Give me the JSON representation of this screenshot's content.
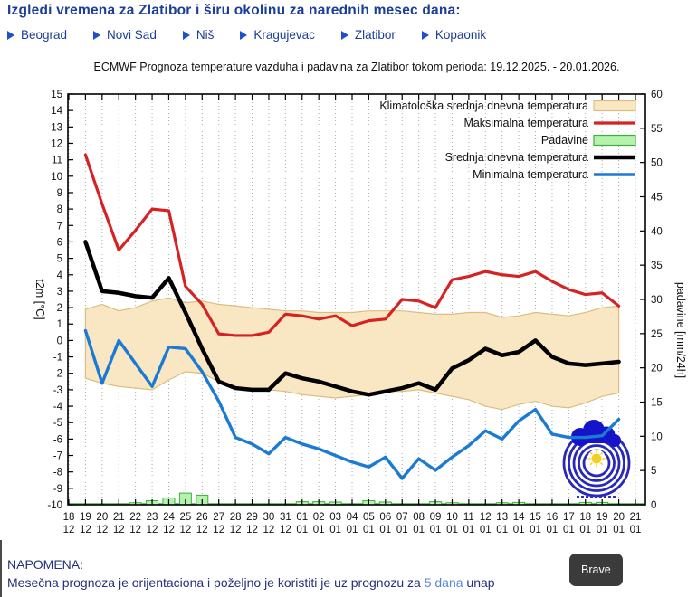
{
  "header": {
    "title": "Izgledi vremena za Zlatibor i širu okolinu za narednih mesec dana:"
  },
  "nav": {
    "items": [
      {
        "label": "Beograd"
      },
      {
        "label": "Novi Sad"
      },
      {
        "label": "Niš"
      },
      {
        "label": "Kragujevac"
      },
      {
        "label": "Zlatibor"
      },
      {
        "label": "Kopaonik"
      }
    ]
  },
  "chart_data": {
    "type": "line",
    "title": "ECMWF Prognoza temperature vazduha i padavina za Zlatibor tokom perioda: 19.12.2025. - 20.01.2026.",
    "grid": "vertical-dotted",
    "legend_position": "top-right",
    "y_left": {
      "label": "t2m [°C]",
      "min": -10,
      "max": 15,
      "step": 1
    },
    "y_right": {
      "label": "padavine [mm/24h]",
      "min": 0,
      "max": 60,
      "step": 5
    },
    "x_ticks": {
      "days": [
        "18",
        "19",
        "20",
        "21",
        "22",
        "23",
        "24",
        "25",
        "26",
        "27",
        "28",
        "29",
        "30",
        "31",
        "01",
        "02",
        "03",
        "04",
        "05",
        "06",
        "07",
        "08",
        "09",
        "10",
        "11",
        "12",
        "13",
        "14",
        "15",
        "16",
        "17",
        "18",
        "19",
        "20",
        "21"
      ],
      "months": [
        "12",
        "12",
        "12",
        "12",
        "12",
        "12",
        "12",
        "12",
        "12",
        "12",
        "12",
        "12",
        "12",
        "12",
        "01",
        "01",
        "01",
        "01",
        "01",
        "01",
        "01",
        "01",
        "01",
        "01",
        "01",
        "01",
        "01",
        "01",
        "01",
        "01",
        "01",
        "01",
        "01",
        "01",
        "01"
      ]
    },
    "data_start_tick": 1,
    "data_dates": [
      "19.12",
      "20.12",
      "21.12",
      "22.12",
      "23.12",
      "24.12",
      "25.12",
      "26.12",
      "27.12",
      "28.12",
      "29.12",
      "30.12",
      "31.12",
      "01.01",
      "02.01",
      "03.01",
      "04.01",
      "05.01",
      "06.01",
      "07.01",
      "08.01",
      "09.01",
      "10.01",
      "11.01",
      "12.01",
      "13.01",
      "14.01",
      "15.01",
      "16.01",
      "17.01",
      "18.01",
      "19.01",
      "20.01"
    ],
    "series": [
      {
        "name": "Klimatološka srednja dnevna temperatura",
        "type": "band",
        "upper": [
          1.9,
          2.2,
          1.8,
          2.0,
          2.4,
          2.6,
          2.3,
          2.4,
          2.2,
          2.1,
          2.0,
          1.9,
          1.8,
          1.8,
          1.7,
          1.7,
          1.7,
          1.8,
          1.8,
          1.8,
          1.7,
          1.6,
          1.6,
          1.7,
          1.7,
          1.4,
          1.5,
          1.7,
          1.6,
          1.5,
          1.7,
          2.0,
          2.1
        ],
        "lower": [
          -2.3,
          -2.6,
          -2.8,
          -2.9,
          -3.0,
          -2.4,
          -1.9,
          -2.0,
          -2.5,
          -2.8,
          -3.0,
          -3.0,
          -3.1,
          -3.3,
          -3.4,
          -3.5,
          -3.4,
          -3.3,
          -3.1,
          -3.1,
          -3.0,
          -3.2,
          -3.4,
          -3.6,
          -4.0,
          -4.2,
          -3.9,
          -3.7,
          -4.0,
          -4.1,
          -3.8,
          -3.4,
          -3.2
        ]
      },
      {
        "name": "Maksimalna temperatura",
        "type": "line",
        "color": "#d62222",
        "width": 3.2,
        "values": [
          11.3,
          8.3,
          5.5,
          6.7,
          8.0,
          7.9,
          3.3,
          2.2,
          0.4,
          0.3,
          0.3,
          0.5,
          1.6,
          1.5,
          1.3,
          1.5,
          0.9,
          1.2,
          1.3,
          2.5,
          2.4,
          2.0,
          3.7,
          3.9,
          4.2,
          4.0,
          3.9,
          4.2,
          3.6,
          3.1,
          2.8,
          2.9,
          2.1
        ]
      },
      {
        "name": "Padavine",
        "type": "bar",
        "axis": "right",
        "values": [
          0.0,
          0.1,
          0.1,
          0.3,
          0.6,
          1.0,
          1.7,
          1.4,
          0.1,
          0.1,
          0.1,
          0.1,
          0.1,
          0.45,
          0.45,
          0.4,
          0.1,
          0.6,
          0.4,
          0.1,
          0.1,
          0.45,
          0.3,
          0.1,
          0.1,
          0.3,
          0.35,
          0.1,
          0.1,
          0.1,
          0.35,
          0.35,
          0.1
        ]
      },
      {
        "name": "Srednja dnevna temperatura",
        "type": "line",
        "color": "#000000",
        "width": 4.5,
        "values": [
          6.0,
          3.0,
          2.9,
          2.7,
          2.6,
          3.8,
          1.7,
          -0.5,
          -2.5,
          -2.9,
          -3.0,
          -3.0,
          -2.0,
          -2.3,
          -2.5,
          -2.8,
          -3.1,
          -3.3,
          -3.1,
          -2.9,
          -2.6,
          -3.0,
          -1.7,
          -1.2,
          -0.5,
          -0.9,
          -0.7,
          0.0,
          -1.0,
          -1.4,
          -1.5,
          -1.4,
          -1.3
        ]
      },
      {
        "name": "Minimalna temperatura",
        "type": "line",
        "color": "#1a7ad4",
        "width": 3.4,
        "values": [
          0.6,
          -2.6,
          0.0,
          -1.4,
          -2.8,
          -0.4,
          -0.5,
          -1.9,
          -3.7,
          -5.9,
          -6.3,
          -6.9,
          -5.9,
          -6.3,
          -6.6,
          -7.0,
          -7.4,
          -7.7,
          -7.1,
          -8.4,
          -7.2,
          -7.9,
          -7.1,
          -6.4,
          -5.5,
          -6.0,
          -4.9,
          -4.2,
          -5.7,
          -5.9,
          -5.9,
          -5.8,
          -4.8
        ]
      }
    ],
    "colors": {
      "band_fill": "#f9e7c3",
      "band_stroke": "#dcbd7e",
      "bar_fill": "#b5f2ae",
      "bar_stroke": "#3fae3f",
      "grid": "#aaaaaa",
      "frame": "#000000"
    }
  },
  "footer": {
    "note_title": "NAPOMENA:",
    "note_text": "Mesečna prognoza je orijentaciona i poželjno je koristiti je uz prognozu za ",
    "note_link": "5 dana",
    "note_tail": " unap"
  },
  "tooltip": {
    "label": "Brave"
  }
}
